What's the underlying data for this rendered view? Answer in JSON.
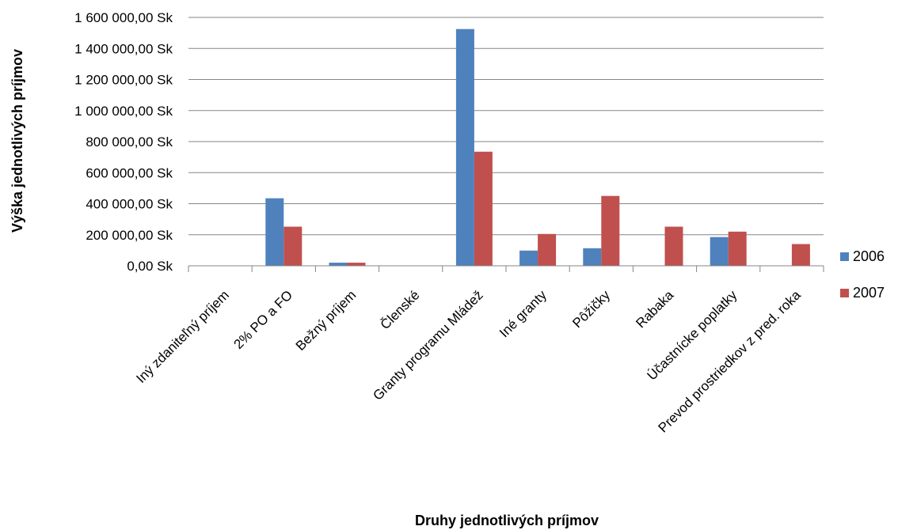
{
  "chart_data": {
    "type": "bar",
    "title": "",
    "xlabel": "Druhy jednotlivých príjmov",
    "ylabel": "Výška jednotlivých príjmov",
    "ylim": [
      0,
      1600000
    ],
    "y_ticks": [
      {
        "value": 0,
        "label": "0,00 Sk"
      },
      {
        "value": 200000,
        "label": "200 000,00 Sk"
      },
      {
        "value": 400000,
        "label": "400 000,00 Sk"
      },
      {
        "value": 600000,
        "label": "600 000,00 Sk"
      },
      {
        "value": 800000,
        "label": "800 000,00 Sk"
      },
      {
        "value": 1000000,
        "label": "1 000 000,00 Sk"
      },
      {
        "value": 1200000,
        "label": "1 200 000,00 Sk"
      },
      {
        "value": 1400000,
        "label": "1 400 000,00 Sk"
      },
      {
        "value": 1600000,
        "label": "1 600 000,00 Sk"
      }
    ],
    "categories": [
      "Iný zdaniteľný príjem",
      "2% PO a FO",
      "Bežný príjem",
      "Členské",
      "Granty programu Mládež",
      "Iné granty",
      "Pôžičky",
      "Rabaka",
      "Účastnícke poplatky",
      "Prevod prostriedkov z pred. roka"
    ],
    "series": [
      {
        "name": "2006",
        "color": "#4F81BD",
        "values": [
          0,
          435000,
          20000,
          0,
          1525000,
          98000,
          113000,
          0,
          185000,
          0
        ]
      },
      {
        "name": "2007",
        "color": "#C0504D",
        "values": [
          0,
          252000,
          20000,
          0,
          735000,
          205000,
          450000,
          252000,
          220000,
          140000
        ]
      }
    ],
    "grid": true,
    "legend_position": "right"
  }
}
